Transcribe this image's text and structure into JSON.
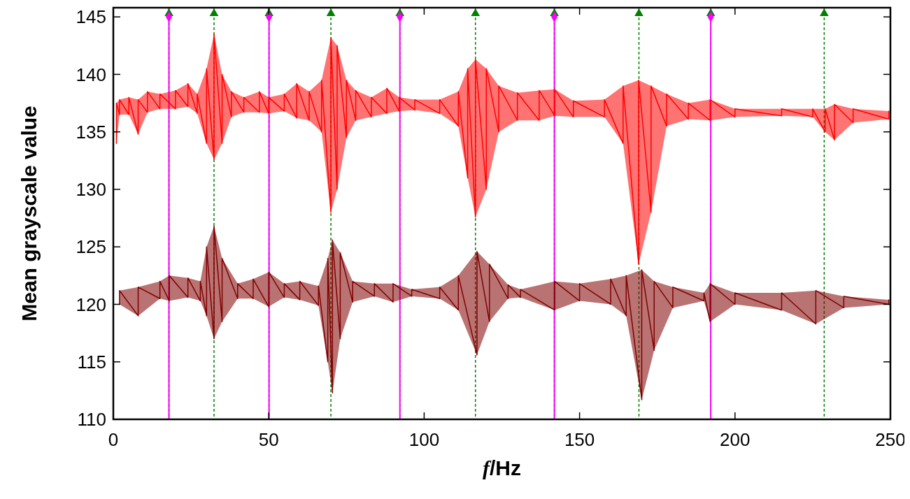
{
  "chart_data": {
    "type": "line",
    "xlabel": "f/Hz",
    "ylabel": "Mean grayscale value",
    "xlim": [
      0,
      250
    ],
    "ylim": [
      110,
      145.8
    ],
    "xticks": [
      0,
      50,
      100,
      150,
      200,
      250
    ],
    "yticks": [
      110,
      115,
      120,
      125,
      130,
      135,
      140,
      145
    ],
    "grid": false,
    "marker": "none",
    "ref_lines": [
      {
        "axis": "x",
        "value": 17.9,
        "color": "#008000",
        "line_style": "dashed"
      },
      {
        "axis": "x",
        "value": 32.4,
        "color": "#008000",
        "line_style": "dashed"
      },
      {
        "axis": "x",
        "value": 50.1,
        "color": "#008000",
        "line_style": "dashed"
      },
      {
        "axis": "x",
        "value": 70,
        "color": "#008000",
        "line_style": "dashed"
      },
      {
        "axis": "x",
        "value": 92.2,
        "color": "#008000",
        "line_style": "dashed"
      },
      {
        "axis": "x",
        "value": 116.5,
        "color": "#008000",
        "line_style": "dashed"
      },
      {
        "axis": "x",
        "value": 141.9,
        "color": "#008000",
        "line_style": "dashed"
      },
      {
        "axis": "x",
        "value": 169.1,
        "color": "#008000",
        "line_style": "dashed"
      },
      {
        "axis": "x",
        "value": 192.2,
        "color": "#008000",
        "line_style": "dashed"
      },
      {
        "axis": "x",
        "value": 228.7,
        "color": "#008000",
        "line_style": "dashed"
      },
      {
        "axis": "x",
        "value": 17.9,
        "color": "#ff00ff",
        "line_style": "solid"
      },
      {
        "axis": "x",
        "value": 50.1,
        "color": "#ff00ff",
        "line_style": "solid"
      },
      {
        "axis": "x",
        "value": 92.2,
        "color": "#ff00ff",
        "line_style": "solid"
      },
      {
        "axis": "x",
        "value": 141.9,
        "color": "#ff00ff",
        "line_style": "solid"
      },
      {
        "axis": "x",
        "value": 192.2,
        "color": "#ff00ff",
        "line_style": "solid"
      }
    ],
    "series": [
      {
        "color": "#ff0000",
        "x": [
          1,
          1,
          2,
          2,
          5,
          5,
          8,
          8,
          11,
          11,
          15,
          15,
          20,
          20,
          24,
          24,
          27,
          27,
          30,
          30,
          32.4,
          32.4,
          35,
          35,
          38,
          38,
          42,
          42,
          47,
          47,
          50,
          50,
          55,
          55,
          59,
          59,
          63,
          63,
          67,
          67,
          70,
          70,
          72,
          72,
          75,
          75,
          78,
          78,
          83,
          83,
          88,
          88,
          92,
          92,
          97,
          97,
          105,
          105,
          111,
          111,
          114,
          114,
          116.5,
          116.5,
          120,
          120,
          124,
          124,
          130,
          130,
          137,
          137,
          142,
          142,
          148,
          148,
          158,
          158,
          164,
          164,
          169,
          169,
          173,
          173,
          178,
          178,
          185,
          185,
          192,
          192,
          200,
          200,
          215,
          215,
          225,
          225,
          229,
          229,
          232,
          232,
          238,
          238,
          249.5,
          249.5
        ],
        "lower": [
          134,
          134,
          136.5,
          136.5,
          136.5,
          136.5,
          134.8,
          134.8,
          136.7,
          136.7,
          137,
          137,
          137,
          137,
          137.2,
          137.2,
          136.6,
          136.6,
          134,
          134,
          132.6,
          132.6,
          134,
          134,
          136.3,
          136.3,
          136.7,
          136.7,
          136.7,
          136.7,
          136.6,
          136.6,
          136.8,
          136.8,
          136.2,
          136.2,
          136,
          136,
          135,
          135,
          128,
          128,
          130,
          130,
          134.5,
          134.5,
          136,
          136,
          136.3,
          136.3,
          136.6,
          136.6,
          136.8,
          136.8,
          136.9,
          136.9,
          136.6,
          136.6,
          135.5,
          135.5,
          131,
          131,
          127.6,
          127.6,
          130,
          130,
          135,
          135,
          136,
          136,
          136,
          136,
          136.4,
          136.4,
          136.3,
          136.3,
          136.3,
          136.3,
          134,
          134,
          123.5,
          123.5,
          128,
          128,
          135.5,
          135.5,
          136.1,
          136.1,
          136,
          136,
          136.3,
          136.3,
          136.4,
          136.4,
          136.3,
          136.3,
          135,
          135,
          134.3,
          134.3,
          135.8,
          135.8,
          136.1,
          136.1
        ],
        "upper": [
          137.5,
          137.5,
          137.8,
          137.8,
          138,
          138,
          137.8,
          137.8,
          138.5,
          138.5,
          138.3,
          138.3,
          138.6,
          138.6,
          139.2,
          139.2,
          138.3,
          138.3,
          140.5,
          140.5,
          143.5,
          143.5,
          140,
          140,
          138.5,
          138.5,
          138,
          138,
          138.5,
          138.5,
          138,
          138,
          138.3,
          138.3,
          139.2,
          139.2,
          138.5,
          138.5,
          139.5,
          139.5,
          143.2,
          143.2,
          142.5,
          142.5,
          139.5,
          139.5,
          138.6,
          138.6,
          138,
          138,
          138.8,
          138.8,
          138,
          138,
          137.8,
          137.8,
          137.8,
          137.8,
          138.5,
          138.5,
          140.5,
          140.5,
          141.3,
          141.3,
          140.5,
          140.5,
          139,
          139,
          138.4,
          138.4,
          138.6,
          138.6,
          138.7,
          138.7,
          137.7,
          137.7,
          137.8,
          137.8,
          139,
          139,
          139.5,
          139.5,
          139,
          139,
          138.3,
          138.3,
          137.5,
          137.5,
          137.8,
          137.8,
          137,
          137,
          137,
          137,
          137,
          137,
          137,
          137,
          137.4,
          137.4,
          137,
          137,
          136.8,
          136.8
        ],
        "values": [
          134,
          137.5,
          136.5,
          137.8,
          136.5,
          138,
          134.8,
          137.8,
          136.7,
          138.5,
          137,
          138.3,
          137,
          138.6,
          137.2,
          139.2,
          136.6,
          138.3,
          134,
          140.5,
          132.6,
          143.5,
          134,
          140,
          136.3,
          138.5,
          136.7,
          138,
          136.7,
          138.5,
          136.6,
          138,
          136.8,
          138.3,
          136.2,
          139.2,
          136,
          138.5,
          135,
          139.5,
          128,
          143.2,
          130,
          142.5,
          134.5,
          139.5,
          136,
          138.6,
          136.3,
          138,
          136.6,
          138.8,
          136.8,
          138,
          136.9,
          137.8,
          136.6,
          137.8,
          135.5,
          138.5,
          131,
          140.5,
          127.6,
          141.3,
          130,
          140.5,
          135,
          139,
          136,
          138.4,
          136,
          138.6,
          136.4,
          138.7,
          136.3,
          137.7,
          136.3,
          137.8,
          134,
          139,
          123.5,
          139.5,
          128,
          139,
          135.5,
          138.3,
          136.1,
          137.5,
          136,
          137.8,
          136.3,
          137,
          136.4,
          137,
          136.3,
          137,
          135,
          137,
          134.3,
          137.4,
          135.8,
          137,
          136.1,
          136.8
        ]
      },
      {
        "color": "#800000",
        "x": [
          2,
          2,
          8,
          8,
          15,
          15,
          18,
          18,
          24,
          24,
          28,
          28,
          30,
          30,
          32.4,
          32.4,
          35,
          35,
          40,
          40,
          45,
          45,
          50,
          50,
          55,
          55,
          60,
          60,
          66,
          66,
          69,
          69,
          70.5,
          70.5,
          73,
          73,
          77,
          77,
          84,
          84,
          90,
          90,
          96,
          96,
          105,
          105,
          111,
          111,
          117,
          117,
          121,
          121,
          127,
          127,
          131,
          131,
          142,
          142,
          150,
          150,
          160,
          160,
          165,
          165,
          170,
          170,
          174,
          174,
          180,
          180,
          190,
          190,
          192,
          192,
          200,
          200,
          215,
          215,
          226,
          226,
          235,
          235,
          249.5,
          249.5
        ],
        "lower": [
          120,
          120,
          119,
          119,
          120.5,
          120.5,
          120.3,
          120.3,
          120.6,
          120.6,
          120.3,
          120.3,
          119,
          119,
          117,
          117,
          118.5,
          118.5,
          120.5,
          120.5,
          120.5,
          120.5,
          119.8,
          119.8,
          120.6,
          120.6,
          120.4,
          120.4,
          119.9,
          119.9,
          115,
          115,
          112.3,
          112.3,
          117,
          117,
          120.2,
          120.2,
          120.7,
          120.7,
          120.2,
          120.2,
          120.7,
          120.7,
          120.5,
          120.5,
          119.5,
          119.5,
          115.6,
          115.6,
          118.5,
          118.5,
          120.5,
          120.5,
          120.6,
          120.6,
          119.5,
          119.5,
          120.3,
          120.3,
          120,
          120,
          119,
          119,
          111.7,
          111.7,
          116,
          116,
          119.7,
          119.7,
          120.3,
          120.3,
          118.5,
          118.5,
          120,
          120,
          119.5,
          119.5,
          118.3,
          118.3,
          119.7,
          119.7,
          120,
          120
        ],
        "upper": [
          121.2,
          121.2,
          121.5,
          121.5,
          122,
          122,
          122.5,
          122.5,
          122.3,
          122.3,
          122,
          122,
          125,
          125,
          126.8,
          126.8,
          124,
          124,
          121.8,
          121.8,
          122.2,
          122.2,
          122.8,
          122.8,
          121.8,
          121.8,
          122,
          122,
          121.6,
          121.6,
          124,
          124,
          125.6,
          125.6,
          124.5,
          124.5,
          122,
          122,
          121.8,
          121.8,
          121.8,
          121.8,
          121.3,
          121.3,
          121.5,
          121.5,
          122.5,
          122.5,
          124.6,
          124.6,
          123.5,
          123.5,
          121.7,
          121.7,
          121.3,
          121.3,
          122,
          122,
          121.8,
          121.8,
          122.2,
          122.2,
          122.5,
          122.5,
          123,
          123,
          122,
          122,
          121.5,
          121.5,
          121,
          121,
          121.8,
          121.8,
          121,
          121,
          121,
          121,
          121.2,
          121.2,
          120.7,
          120.7,
          120.4,
          120.4
        ],
        "values": [
          120,
          121.2,
          119,
          121.5,
          120.5,
          122,
          120.3,
          122.5,
          120.6,
          122.3,
          120.3,
          122,
          119,
          125,
          117,
          126.8,
          118.5,
          124,
          120.5,
          121.8,
          120.5,
          122.2,
          119.8,
          122.8,
          120.6,
          121.8,
          120.4,
          122,
          119.9,
          121.6,
          115,
          124,
          112.3,
          125.6,
          117,
          124.5,
          120.2,
          122,
          120.7,
          121.8,
          120.2,
          121.8,
          120.7,
          121.3,
          120.5,
          121.5,
          119.5,
          122.5,
          115.6,
          124.6,
          118.5,
          123.5,
          120.5,
          121.7,
          120.6,
          121.3,
          119.5,
          122,
          120.3,
          121.8,
          120,
          122.2,
          119,
          122.5,
          111.7,
          123,
          116,
          122,
          119.7,
          121.5,
          120.3,
          121,
          118.5,
          121.8,
          120,
          121,
          119.5,
          121,
          118.3,
          121.2,
          119.7,
          120.7,
          120,
          120.4
        ]
      },
      {
        "type": "scatter",
        "marker": "triangle",
        "color": "#008000",
        "x": [
          17.9,
          32.4,
          50.1,
          70,
          92.2,
          116.5,
          141.9,
          169.1,
          192.2,
          228.7
        ],
        "values": [
          145.3,
          145.3,
          145.3,
          145.3,
          145.3,
          145.3,
          145.3,
          145.3,
          145.3,
          145.3
        ]
      },
      {
        "type": "scatter",
        "marker": "diamond",
        "color": "#ff00ff",
        "x": [
          17.9,
          50.1,
          92.2,
          141.9,
          192.2
        ],
        "values": [
          145,
          145,
          145,
          145,
          145
        ]
      }
    ]
  }
}
